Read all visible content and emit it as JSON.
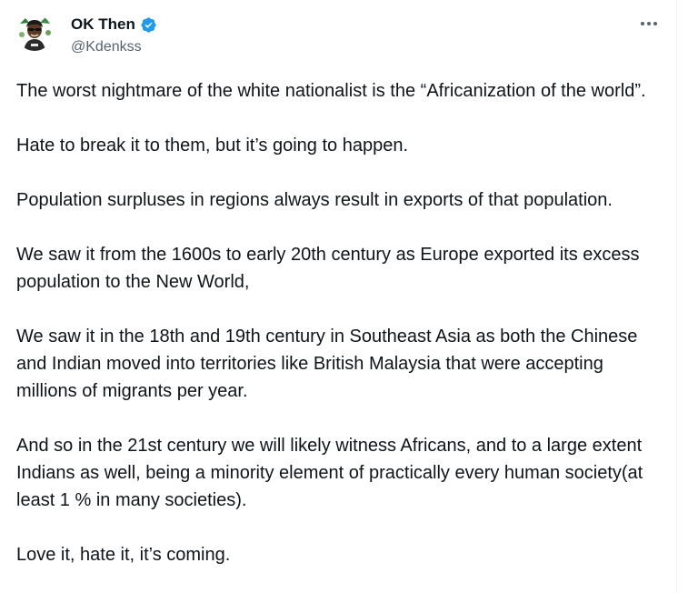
{
  "author": {
    "display_name": "OK Then",
    "handle": "@Kdenkss",
    "verified": true,
    "avatar_icon": "avatar-cartoon-icon"
  },
  "menu": {
    "more_icon": "more-options-icon"
  },
  "tweet": {
    "paragraphs": [
      "The worst nightmare of the white nationalist is the “Africanization of the world”.",
      "Hate to break it to them, but it’s going to happen.",
      "Population surpluses in regions always result in exports of that population.",
      "We saw it from the 1600s to early 20th century as Europe exported its excess population to the New World,",
      "We saw it in the 18th and 19th century in Southeast Asia as both the Chinese and Indian moved into territories like British Malaysia that were accepting millions of migrants per year.",
      "And so in the 21st century we will likely witness Africans, and to a large extent Indians as well, being a minority element of practically every human society(at least 1 % in many societies).",
      "Love it, hate it, it’s coming."
    ]
  },
  "colors": {
    "text": "#0f1419",
    "secondary_text": "#536471",
    "verified_badge": "#1d9bf0",
    "divider": "#eff3f4"
  }
}
